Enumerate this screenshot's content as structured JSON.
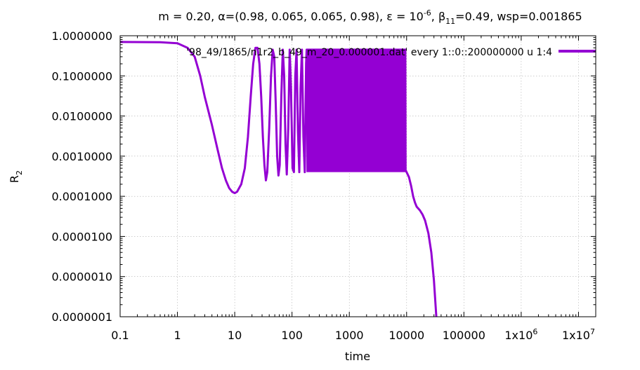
{
  "chart_data": {
    "type": "line",
    "title": {
      "prefix": "m = 0.20, α=(0.98, 0.065, 0.065, 0.98), ε = 10",
      "eps_exp": "-6",
      "mid": ", β",
      "beta_sub": "11",
      "suffix": "=0.49, wsp=0.001865"
    },
    "xlabel": "time",
    "ylabel": {
      "base": "R",
      "sub": "2"
    },
    "xscale": "log",
    "yscale": "log",
    "xlim": [
      0.1,
      20000000
    ],
    "ylim": [
      1e-07,
      1.0
    ],
    "grid": true,
    "legend_position": "top-right",
    "x_ticks": [
      {
        "value": 0.1,
        "label": "0.1"
      },
      {
        "value": 1,
        "label": "1"
      },
      {
        "value": 10,
        "label": "10"
      },
      {
        "value": 100,
        "label": "100"
      },
      {
        "value": 1000,
        "label": "1000"
      },
      {
        "value": 10000,
        "label": "10000"
      },
      {
        "value": 100000,
        "label": "100000"
      },
      {
        "value": 1000000,
        "base": "1x10",
        "exp": "6"
      },
      {
        "value": 10000000,
        "base": "1x10",
        "exp": "7"
      }
    ],
    "y_ticks": [
      {
        "value": 1.0,
        "label": "1.0000000"
      },
      {
        "value": 0.1,
        "label": "0.1000000"
      },
      {
        "value": 0.01,
        "label": "0.0100000"
      },
      {
        "value": 0.001,
        "label": "0.0010000"
      },
      {
        "value": 0.0001,
        "label": "0.0001000"
      },
      {
        "value": 1e-05,
        "label": "0.0000100"
      },
      {
        "value": 1e-06,
        "label": "0.0000010"
      },
      {
        "value": 1e-07,
        "label": "0.0000001"
      }
    ],
    "series": [
      {
        "name": "'98_49/1865/n1r2_b_49_m_20_0.000001.dat' every 1::0::200000000 u 1:4",
        "color": "#9400d3",
        "points": [
          [
            0.1,
            0.7
          ],
          [
            0.5,
            0.69
          ],
          [
            1,
            0.65
          ],
          [
            1.5,
            0.5
          ],
          [
            2,
            0.3
          ],
          [
            2.5,
            0.1
          ],
          [
            3,
            0.03
          ],
          [
            4,
            0.006
          ],
          [
            5,
            0.0015
          ],
          [
            6,
            0.0005
          ],
          [
            7,
            0.00025
          ],
          [
            8,
            0.00016
          ],
          [
            9,
            0.00013
          ],
          [
            10,
            0.00012
          ],
          [
            11,
            0.00013
          ],
          [
            13,
            0.0002
          ],
          [
            15,
            0.0005
          ],
          [
            17,
            0.003
          ],
          [
            19,
            0.03
          ],
          [
            21,
            0.2
          ],
          [
            23,
            0.5
          ],
          [
            25,
            0.5
          ],
          [
            27,
            0.2
          ],
          [
            29,
            0.03
          ],
          [
            31,
            0.003
          ],
          [
            33,
            0.0006
          ],
          [
            35,
            0.00025
          ],
          [
            37,
            0.0004
          ],
          [
            40,
            0.005
          ],
          [
            43,
            0.1
          ],
          [
            46,
            0.45
          ],
          [
            49,
            0.3
          ],
          [
            52,
            0.02
          ],
          [
            55,
            0.001
          ],
          [
            58,
            0.00033
          ],
          [
            61,
            0.0006
          ],
          [
            65,
            0.03
          ],
          [
            69,
            0.45
          ],
          [
            73,
            0.1
          ],
          [
            77,
            0.002
          ],
          [
            81,
            0.00035
          ],
          [
            86,
            0.005
          ],
          [
            91,
            0.45
          ],
          [
            96,
            0.05
          ],
          [
            102,
            0.0005
          ],
          [
            108,
            0.0004
          ],
          [
            114,
            0.1
          ],
          [
            120,
            0.45
          ],
          [
            127,
            0.004
          ],
          [
            134,
            0.0004
          ],
          [
            141,
            0.05
          ],
          [
            149,
            0.45
          ],
          [
            158,
            0.003
          ],
          [
            167,
            0.0004
          ],
          [
            176,
            0.2
          ],
          [
            180,
            0.45
          ],
          [
            9500,
            0.45
          ],
          [
            9600,
            0.00045
          ],
          [
            10000,
            0.0004
          ],
          [
            11000,
            0.0003
          ],
          [
            12000,
            0.00018
          ],
          [
            13000,
            0.0001
          ],
          [
            14000,
            7e-05
          ],
          [
            15000,
            5.5e-05
          ],
          [
            17000,
            4.5e-05
          ],
          [
            19000,
            3.5e-05
          ],
          [
            21000,
            2.5e-05
          ],
          [
            24000,
            1.2e-05
          ],
          [
            27000,
            4e-06
          ],
          [
            30000,
            8e-07
          ],
          [
            33000,
            1e-07
          ]
        ],
        "oscillation_band": {
          "x_start": 180,
          "x_end": 9500,
          "y_low": 0.0004,
          "y_high": 0.45
        }
      }
    ]
  }
}
